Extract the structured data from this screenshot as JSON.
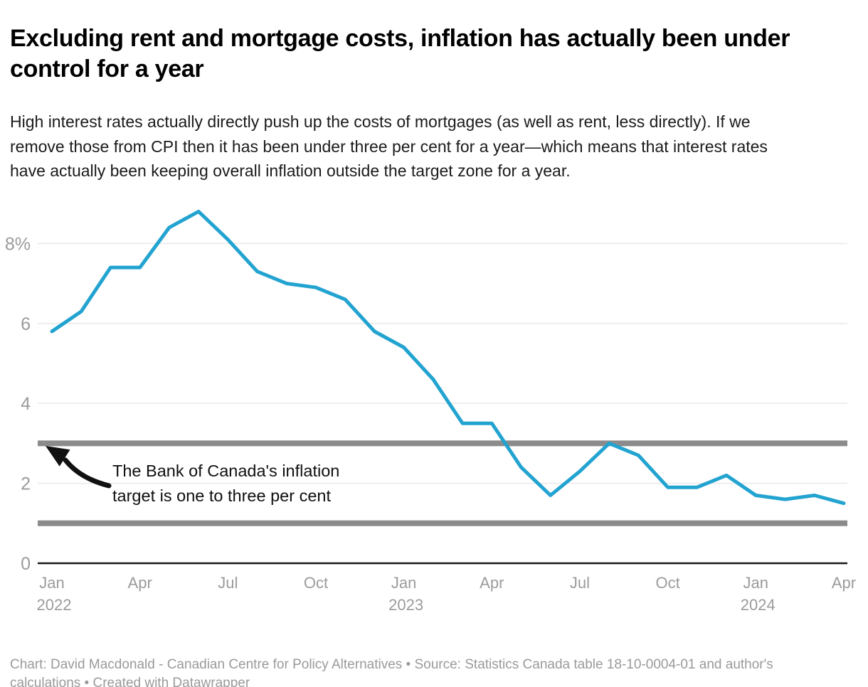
{
  "header": {
    "title": "Excluding rent and mortgage costs, inflation has actually been under control for a year",
    "subtitle": "High interest rates actually directly push up the costs of mortgages (as well as rent, less directly). If we remove those from CPI then it has been under three per cent for a year—which means that interest rates have actually been keeping overall inflation outside the target zone for a year."
  },
  "chart_data": {
    "type": "line",
    "title": "Excluding rent and mortgage costs, inflation has actually been under control for a year",
    "x": [
      "Jan 2022",
      "Feb 2022",
      "Mar 2022",
      "Apr 2022",
      "May 2022",
      "Jun 2022",
      "Jul 2022",
      "Aug 2022",
      "Sep 2022",
      "Oct 2022",
      "Nov 2022",
      "Dec 2022",
      "Jan 2023",
      "Feb 2023",
      "Mar 2023",
      "Apr 2023",
      "May 2023",
      "Jun 2023",
      "Jul 2023",
      "Aug 2023",
      "Sep 2023",
      "Oct 2023",
      "Nov 2023",
      "Dec 2023",
      "Jan 2024",
      "Feb 2024",
      "Mar 2024",
      "Apr 2024"
    ],
    "values": [
      5.8,
      6.3,
      7.4,
      7.4,
      8.4,
      8.8,
      8.1,
      7.3,
      7.0,
      6.9,
      6.6,
      5.8,
      5.4,
      4.6,
      3.5,
      3.5,
      2.4,
      1.7,
      2.3,
      3.0,
      2.7,
      1.9,
      1.9,
      2.2,
      1.7,
      1.6,
      1.7,
      1.5
    ],
    "xlabel": "",
    "ylabel": "",
    "ylim": [
      0,
      9
    ],
    "grid": true,
    "legend": "none",
    "yticks": [
      {
        "value": 0,
        "label": "0"
      },
      {
        "value": 2,
        "label": "2"
      },
      {
        "value": 4,
        "label": "4"
      },
      {
        "value": 6,
        "label": "6"
      },
      {
        "value": 8,
        "label": "8%"
      }
    ],
    "xticks": [
      {
        "index": 0,
        "label": "Jan",
        "sublabel": "2022"
      },
      {
        "index": 3,
        "label": "Apr",
        "sublabel": ""
      },
      {
        "index": 6,
        "label": "Jul",
        "sublabel": ""
      },
      {
        "index": 9,
        "label": "Oct",
        "sublabel": ""
      },
      {
        "index": 12,
        "label": "Jan",
        "sublabel": "2023"
      },
      {
        "index": 15,
        "label": "Apr",
        "sublabel": ""
      },
      {
        "index": 18,
        "label": "Jul",
        "sublabel": ""
      },
      {
        "index": 21,
        "label": "Oct",
        "sublabel": ""
      },
      {
        "index": 24,
        "label": "Jan",
        "sublabel": "2024"
      },
      {
        "index": 27,
        "label": "Apr",
        "sublabel": ""
      }
    ],
    "target_band": {
      "lower": 1,
      "upper": 3
    },
    "annotation": {
      "lines": [
        "The Bank of Canada's inflation",
        "target is one to three per cent"
      ]
    },
    "colors": {
      "line": "#22a3d0",
      "band": "#8b8b8b",
      "grid": "#e7e7e7",
      "axis": "#1a1a1a",
      "tick_label": "#9b9b9b",
      "annotation_text": "#101010"
    }
  },
  "footer": {
    "credit": "Chart: David Macdonald - Canadian Centre for Policy Alternatives • Source: Statistics Canada table 18-10-0004-01 and author's calculations • Created with Datawrapper"
  }
}
